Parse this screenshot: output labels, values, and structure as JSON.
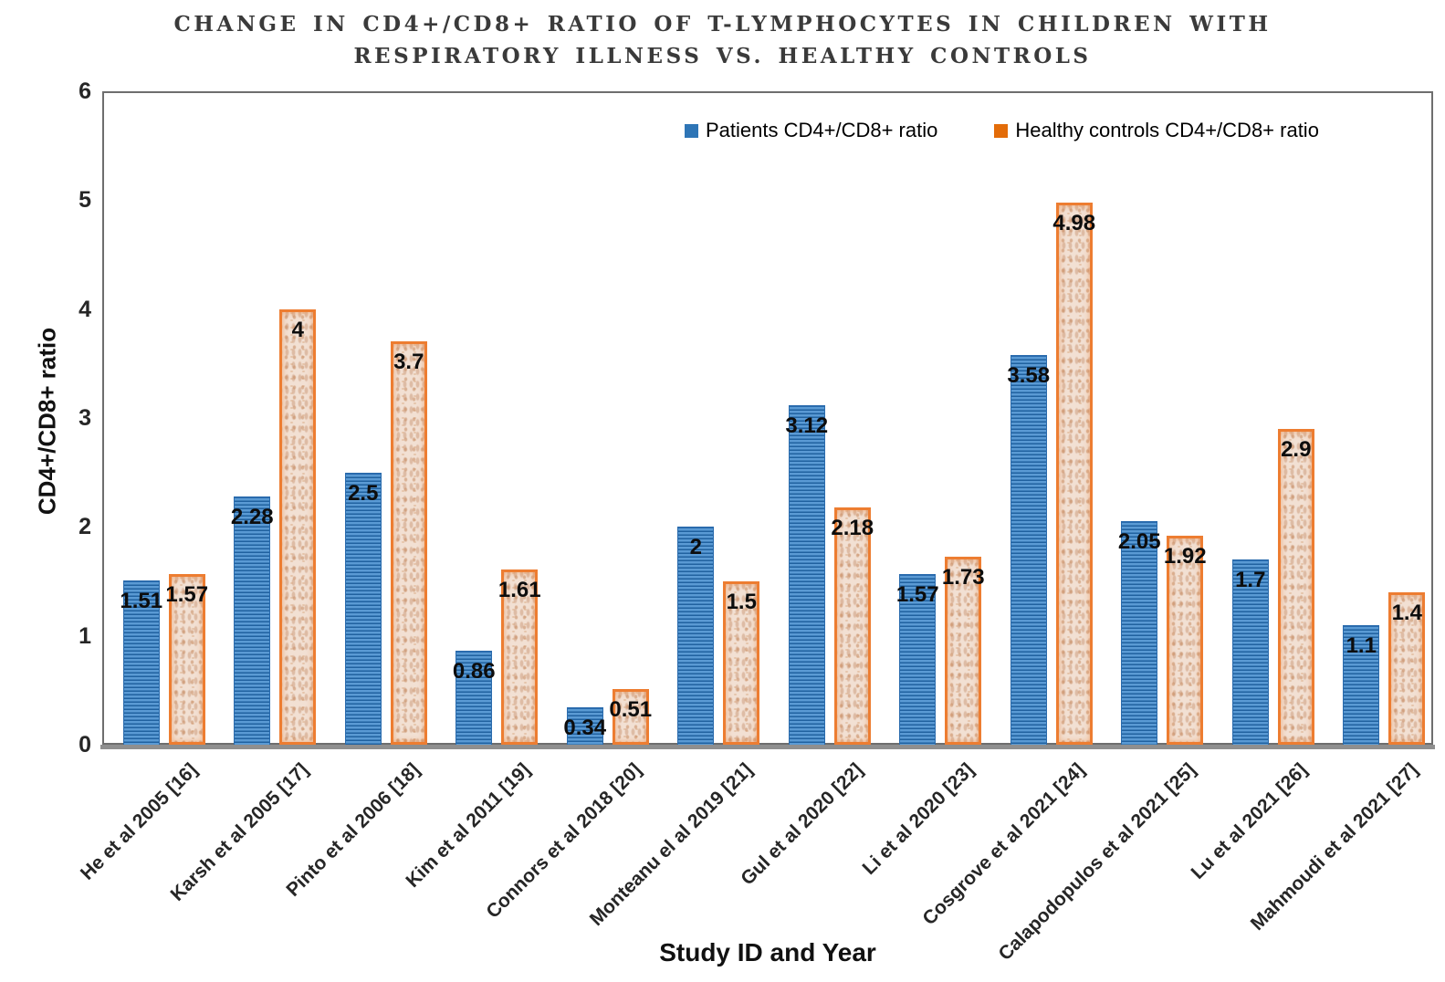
{
  "chart_data": {
    "type": "bar",
    "title": "CHANGE IN CD4+/CD8+ RATIO OF T-LYMPHOCYTES IN CHILDREN WITH RESPIRATORY ILLNESS VS. HEALTHY CONTROLS",
    "title_line1": "CHANGE IN CD4+/CD8+ RATIO OF T-LYMPHOCYTES IN  CHILDREN WITH",
    "title_line2": "RESPIRATORY ILLNESS VS. HEALTHY CONTROLS",
    "xlabel": "Study ID and Year",
    "ylabel": "CD4+/CD8+ ratio",
    "ylim": [
      0,
      6
    ],
    "yticks": [
      0,
      1,
      2,
      3,
      4,
      5,
      6
    ],
    "grid": false,
    "legend_position": "top-inside",
    "categories": [
      "He et al 2005 [16]",
      "Karsh et al 2005 [17]",
      "Pinto et al 2006 [18]",
      "Kim et al 2011 [19]",
      "Connors et al 2018 [20]",
      "Monteanu el al 2019 [21]",
      "Gul et al 2020 [22]",
      "Li et al 2020 [23]",
      "Cosgrove et al 2021 [24]",
      "Calapodopulos et al 2021 [25]",
      "Lu et al 2021 [26]",
      "Mahmoudi et al 2021 [27]"
    ],
    "series": [
      {
        "name": "Patients CD4+/CD8+ ratio",
        "color": "#2E75B6",
        "pattern": "horizontal-stripes",
        "values": [
          1.51,
          2.28,
          2.5,
          0.86,
          0.34,
          2,
          3.12,
          1.57,
          3.58,
          2.05,
          1.7,
          1.1
        ],
        "labels": [
          "1.51",
          "2.28",
          "2.5",
          "0.86",
          "0.34",
          "2",
          "3.12",
          "1.57",
          "3.58",
          "2.05",
          "1.7",
          "1.1"
        ]
      },
      {
        "name": "Healthy controls CD4+/CD8+ ratio",
        "color": "#ED7D31",
        "pattern": "speckled-texture",
        "values": [
          1.57,
          4,
          3.7,
          1.61,
          0.51,
          1.5,
          2.18,
          1.73,
          4.98,
          1.92,
          2.9,
          1.4
        ],
        "labels": [
          "1.57",
          "4",
          "3.7",
          "1.61",
          "0.51",
          "1.5",
          "2.18",
          "1.73",
          "4.98",
          "1.92",
          "2.9",
          "1.4"
        ]
      }
    ]
  }
}
